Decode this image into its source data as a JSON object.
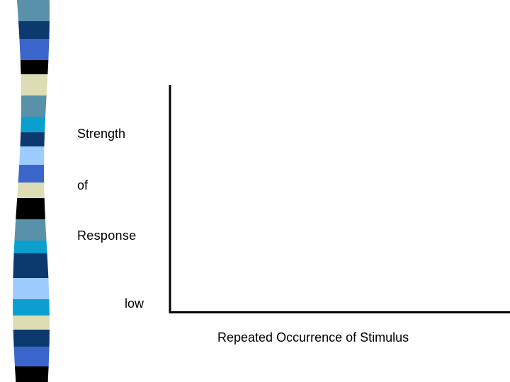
{
  "slide": {
    "y_axis_label_lines": [
      "Strength",
      "of",
      "Response"
    ],
    "y_axis_low_tick": "low",
    "x_axis_label": "Repeated Occurrence of Stimulus"
  },
  "decoration": {
    "stripe_colors": [
      "#5990aa",
      "#0c3a6e",
      "#3a66cc",
      "#000000",
      "#ddddb5",
      "#0a9fcf",
      "#9fccff"
    ]
  },
  "chart_data": {
    "type": "line",
    "title": "",
    "xlabel": "Repeated Occurrence of Stimulus",
    "ylabel": "Strength of Response",
    "y_tick_labels": [
      "low"
    ],
    "series": []
  }
}
